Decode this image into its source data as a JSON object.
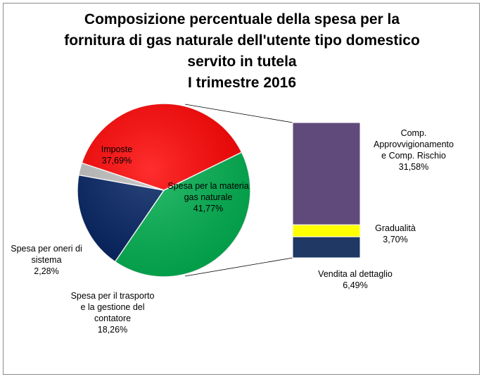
{
  "chart_data": {
    "type": "bar-of-pie",
    "title_lines": [
      "Composizione percentuale della spesa per la",
      "fornitura di gas naturale dell'utente tipo domestico",
      "servito in tutela",
      "I trimestre 2016"
    ],
    "pie": [
      {
        "label_lines": [
          "Spesa per la materia",
          "gas naturale"
        ],
        "value": 41.77,
        "value_label": "41,77%",
        "color": "#00B050"
      },
      {
        "label_lines": [
          "Spesa per il trasporto",
          "e la gestione del",
          "contatore"
        ],
        "value": 18.26,
        "value_label": "18,26%",
        "color": "#002060"
      },
      {
        "label_lines": [
          "Spesa per oneri di",
          "sistema"
        ],
        "value": 2.28,
        "value_label": "2,28%",
        "color": "#BFBFBF"
      },
      {
        "label_lines": [
          "Imposte"
        ],
        "value": 37.69,
        "value_label": "37,69%",
        "color": "#FF0000"
      }
    ],
    "bar": [
      {
        "label_lines": [
          "Comp.",
          "Approvvigionamento",
          "e  Comp. Rischio"
        ],
        "value": 31.58,
        "value_label": "31,58%",
        "color": "#604A7B"
      },
      {
        "label_lines": [
          "Gradualità"
        ],
        "value": 3.7,
        "value_label": "3,70%",
        "color": "#FFFF00"
      },
      {
        "label_lines": [
          "Vendita al dettaglio"
        ],
        "value": 6.49,
        "value_label": "6,49%",
        "color": "#1F3864"
      }
    ],
    "legend": "none"
  }
}
